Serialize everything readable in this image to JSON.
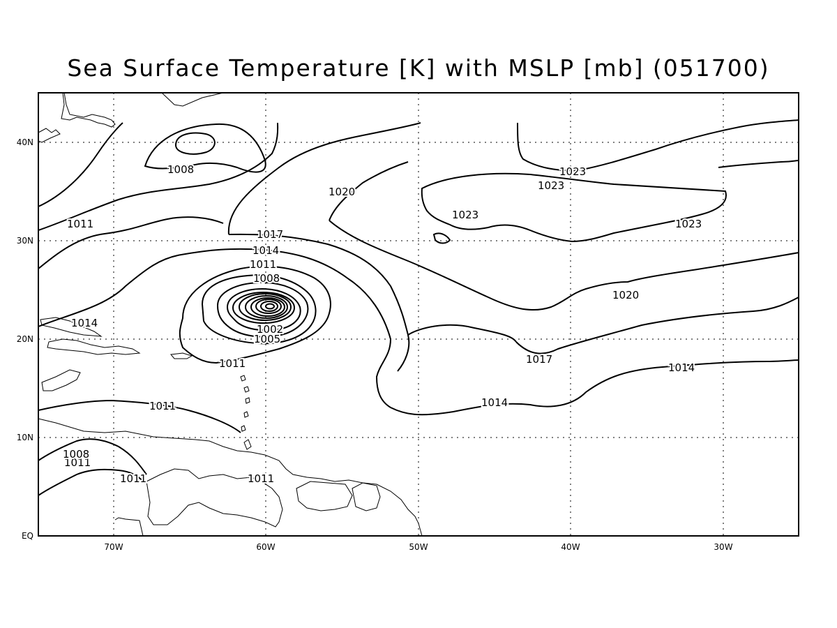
{
  "title": "Sea Surface Temperature [K] with MSLP [mb] (051700)",
  "map": {
    "lon_range": [
      -75,
      -25
    ],
    "lat_range": [
      0,
      45
    ],
    "x_ticks": [
      "70W",
      "60W",
      "50W",
      "40W",
      "30W"
    ],
    "y_ticks": [
      "EQ",
      "10N",
      "20N",
      "30N",
      "40N"
    ],
    "contour_interval_mb": 3,
    "grid": "dotted",
    "low_center": {
      "lon": -60.2,
      "lat": 23.4
    },
    "isobar_labels": [
      "1008",
      "1011",
      "1011",
      "1011",
      "1011",
      "1011",
      "1011",
      "1014",
      "1014",
      "1014",
      "1014",
      "1017",
      "1017",
      "1020",
      "1020",
      "1023",
      "1023",
      "1023",
      "1023",
      "1008",
      "1005",
      "1002",
      "1011",
      "1008"
    ],
    "line_color": "#000000",
    "background": "#ffffff"
  }
}
